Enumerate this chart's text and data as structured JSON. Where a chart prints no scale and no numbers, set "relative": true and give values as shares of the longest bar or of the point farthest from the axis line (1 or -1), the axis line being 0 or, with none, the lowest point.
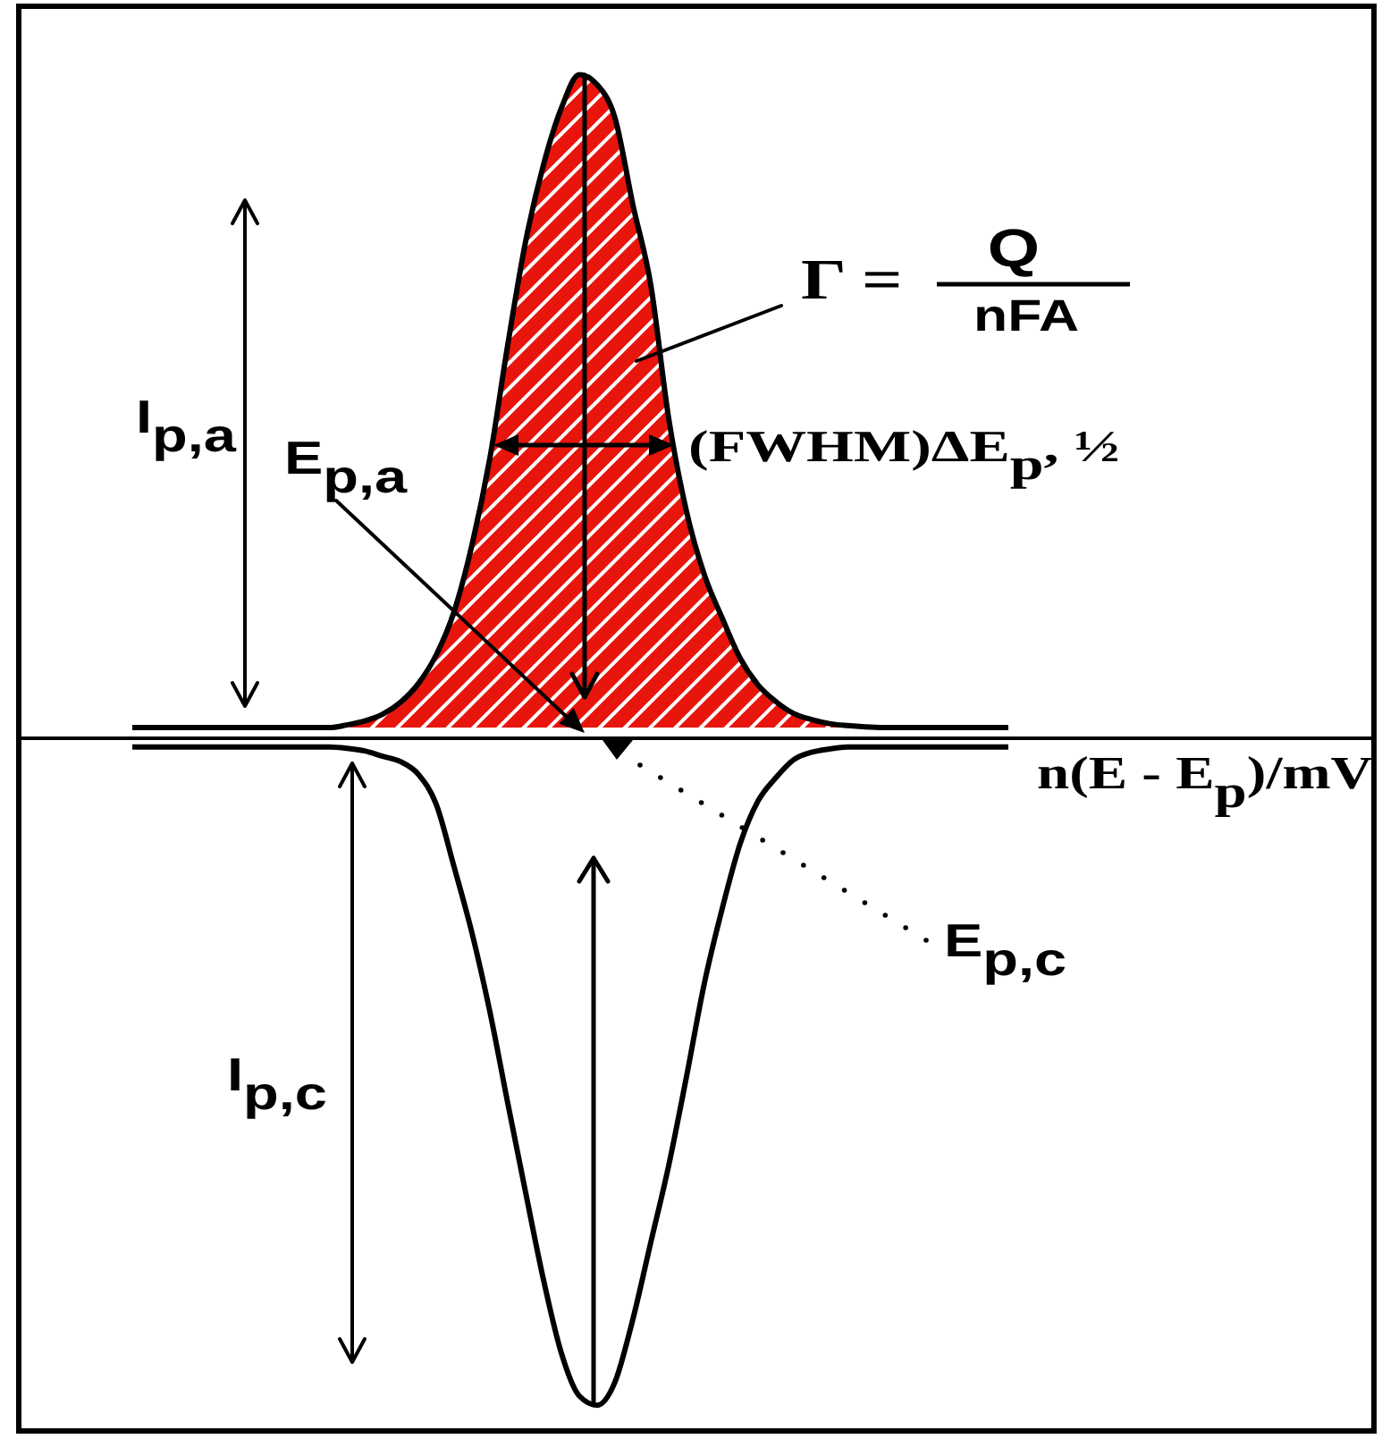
{
  "chart_data": {
    "type": "line",
    "relative": true,
    "tick_labels": false,
    "xlabel": "n(E - E$_{p}$)/mV",
    "categories": [
      null,
      null,
      null,
      null,
      null,
      null,
      null,
      null,
      null,
      null,
      null,
      null,
      null,
      null,
      null,
      null,
      null,
      null,
      null,
      null,
      null,
      null,
      null,
      null,
      null,
      null,
      null,
      null,
      null,
      null,
      null,
      null,
      null,
      null,
      null,
      null,
      null,
      null,
      null,
      null,
      null,
      null,
      null,
      null,
      null,
      null,
      null,
      null,
      null,
      null,
      null,
      null,
      null,
      null,
      null,
      null,
      null,
      null,
      null,
      null,
      null,
      null,
      null,
      null,
      null,
      null,
      null,
      null,
      null,
      null,
      null,
      null,
      null,
      null,
      null,
      null
    ],
    "series": [
      {
        "type": "area",
        "color": "#e8150c",
        "values": [
          null,
          null,
          null,
          null,
          null,
          null,
          0.016,
          0.016,
          0.016,
          0.016,
          0.016,
          0.016,
          0.016,
          0.016,
          0.016,
          0.016,
          0.016,
          0.016,
          0.02,
          0.026,
          0.036,
          0.054,
          0.082,
          0.125,
          0.19,
          0.29,
          0.42,
          0.59,
          0.745,
          0.86,
          0.945,
          0.995,
          0.98,
          0.93,
          0.8,
          0.68,
          0.48,
          0.34,
          0.245,
          0.18,
          0.12,
          0.08,
          0.055,
          0.037,
          0.028,
          0.022,
          0.019,
          0.017,
          0.016,
          0.016,
          0.016,
          0.016,
          0.016,
          0.016,
          0.016,
          0.016,
          null,
          null,
          null,
          null,
          null,
          null,
          null,
          null,
          null,
          null,
          null,
          null,
          null,
          null,
          null,
          null,
          null,
          null,
          null,
          null
        ]
      },
      {
        "color": "#000000",
        "values": [
          null,
          null,
          null,
          null,
          null,
          null,
          -0.013,
          -0.013,
          -0.013,
          -0.013,
          -0.013,
          -0.013,
          -0.013,
          -0.013,
          -0.013,
          -0.013,
          -0.013,
          -0.013,
          -0.015,
          -0.019,
          -0.027,
          -0.035,
          -0.054,
          -0.099,
          -0.193,
          -0.292,
          -0.41,
          -0.547,
          -0.681,
          -0.812,
          -0.922,
          -0.986,
          -1,
          -0.965,
          -0.871,
          -0.756,
          -0.641,
          -0.507,
          -0.367,
          -0.255,
          -0.158,
          -0.094,
          -0.059,
          -0.032,
          -0.021,
          -0.016,
          -0.013,
          -0.013,
          -0.013,
          -0.013,
          -0.013,
          -0.013,
          -0.013,
          -0.013,
          -0.013,
          -0.013,
          null,
          null,
          null,
          null,
          null,
          null,
          null,
          null,
          null,
          null,
          null,
          null,
          null,
          null,
          null,
          null,
          null,
          null,
          null,
          null
        ]
      }
    ],
    "annotations": [
      "Γ =",
      "Q",
      "nFA",
      "(FWHM)ΔE$_{p}$, ½",
      "I$_{p,a}$",
      "E$_{p,a}$",
      "I$_{p,c}$",
      "E$_{p,c}$"
    ]
  }
}
